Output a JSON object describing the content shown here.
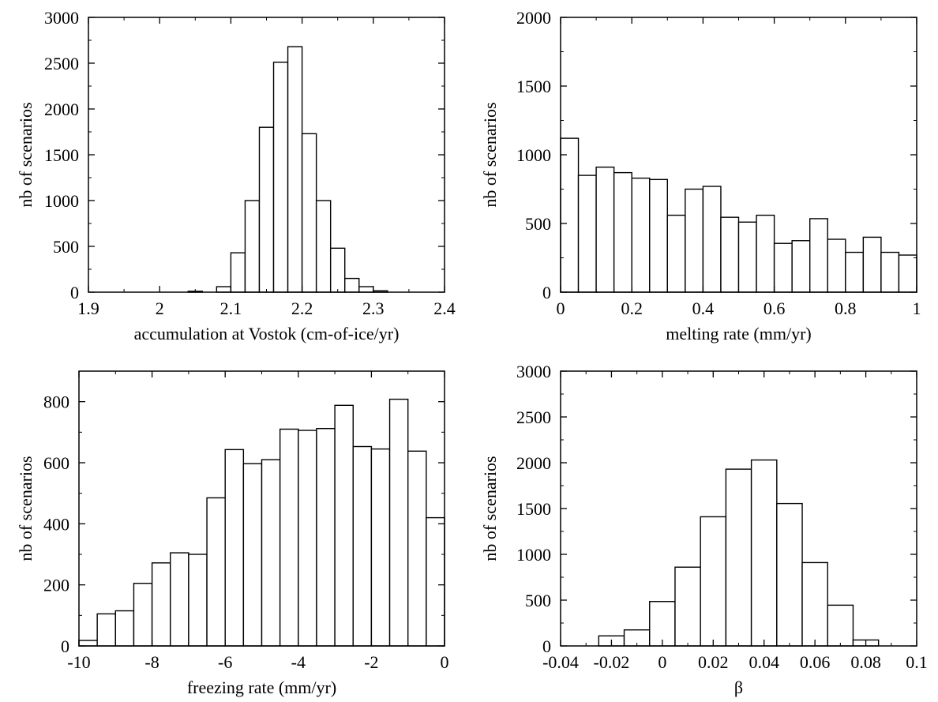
{
  "chart_data": [
    {
      "type": "bar",
      "title": "",
      "xlabel": "accumulation at Vostok (cm-of-ice/yr)",
      "ylabel": "nb of scenarios",
      "xlim": [
        1.9,
        2.4
      ],
      "ylim": [
        0,
        3000
      ],
      "xticks": [
        "1.9",
        "2",
        "2.1",
        "2.2",
        "2.3",
        "2.4"
      ],
      "yticks": [
        "0",
        "500",
        "1000",
        "1500",
        "2000",
        "2500",
        "3000"
      ],
      "bin_edges": [
        2.04,
        2.06,
        2.08,
        2.1,
        2.12,
        2.14,
        2.16,
        2.18,
        2.2,
        2.22,
        2.24,
        2.26,
        2.28,
        2.3,
        2.32
      ],
      "values": [
        10,
        0,
        60,
        430,
        1000,
        1800,
        2510,
        2680,
        1730,
        1000,
        480,
        150,
        60,
        15
      ],
      "grid": false
    },
    {
      "type": "bar",
      "title": "",
      "xlabel": "melting rate (mm/yr)",
      "ylabel": "nb of scenarios",
      "xlim": [
        0,
        1
      ],
      "ylim": [
        0,
        2000
      ],
      "xticks": [
        "0",
        "0.2",
        "0.4",
        "0.6",
        "0.8",
        "1"
      ],
      "yticks": [
        "0",
        "500",
        "1000",
        "1500",
        "2000"
      ],
      "bin_edges": [
        0,
        0.05,
        0.1,
        0.15,
        0.2,
        0.25,
        0.3,
        0.35,
        0.4,
        0.45,
        0.5,
        0.55,
        0.6,
        0.65,
        0.7,
        0.75,
        0.8,
        0.85,
        0.9,
        0.95,
        1.0
      ],
      "values": [
        1120,
        850,
        910,
        870,
        830,
        820,
        560,
        750,
        770,
        545,
        510,
        560,
        355,
        375,
        535,
        385,
        290,
        400,
        290,
        270
      ],
      "grid": false
    },
    {
      "type": "bar",
      "title": "",
      "xlabel": "freezing rate (mm/yr)",
      "ylabel": "nb of scenarios",
      "xlim": [
        -10,
        0
      ],
      "ylim": [
        0,
        900
      ],
      "xticks": [
        "-10",
        "-8",
        "-6",
        "-4",
        "-2",
        "0"
      ],
      "yticks": [
        "0",
        "200",
        "400",
        "600",
        "800"
      ],
      "bin_edges": [
        -10,
        -9.5,
        -9,
        -8.5,
        -8,
        -7.5,
        -7,
        -6.5,
        -6,
        -5.5,
        -5,
        -4.5,
        -4,
        -3.5,
        -3,
        -2.5,
        -2,
        -1.5,
        -1,
        -0.5,
        0
      ],
      "values": [
        18,
        105,
        115,
        205,
        272,
        305,
        300,
        485,
        643,
        597,
        610,
        710,
        706,
        712,
        788,
        653,
        645,
        808,
        638,
        420
      ],
      "grid": false
    },
    {
      "type": "bar",
      "title": "",
      "xlabel": "β",
      "ylabel": "nb of scenarios",
      "xlim": [
        -0.04,
        0.1
      ],
      "ylim": [
        0,
        3000
      ],
      "xticks": [
        "-0.04",
        "-0.02",
        "0",
        "0.02",
        "0.04",
        "0.06",
        "0.08",
        "0.1"
      ],
      "yticks": [
        "0",
        "500",
        "1000",
        "1500",
        "2000",
        "2500",
        "3000"
      ],
      "bin_edges": [
        -0.025,
        -0.015,
        -0.005,
        0.005,
        0.015,
        0.025,
        0.035,
        0.045,
        0.055,
        0.065,
        0.075,
        0.085
      ],
      "values": [
        110,
        175,
        485,
        860,
        1410,
        1930,
        2030,
        1555,
        910,
        445,
        65
      ],
      "grid": false
    }
  ]
}
